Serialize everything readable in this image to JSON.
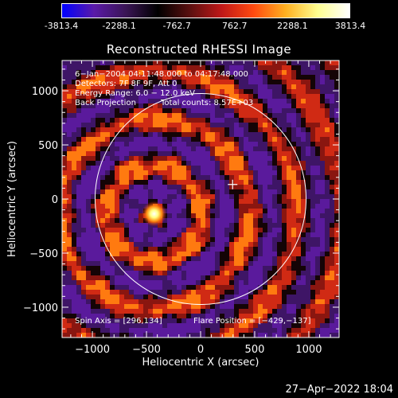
{
  "colorbar": {
    "min": -3813.4,
    "max": 3813.4,
    "tick_labels": [
      "-3813.4",
      "-2288.1",
      "-762.7",
      "762.7",
      "2288.1",
      "3813.4"
    ],
    "colors": [
      "#0000ff",
      "#5a1aa8",
      "#3a1555",
      "#000000",
      "#5a1010",
      "#c01818",
      "#ff4a10",
      "#ffb020",
      "#ffff90",
      "#ffffff"
    ]
  },
  "chart_data": {
    "type": "heatmap",
    "title": "Reconstructed RHESSI Image",
    "xlabel": "Heliocentric X (arcsec)",
    "ylabel": "Heliocentric Y (arcsec)",
    "xlim": [
      -1280,
      1280
    ],
    "ylim": [
      -1280,
      1280
    ],
    "xticks": [
      -1000,
      -500,
      0,
      500,
      1000
    ],
    "yticks": [
      -1000,
      -500,
      0,
      500,
      1000
    ],
    "xtick_labels": [
      "−1000",
      "−500",
      "0",
      "500",
      "1000"
    ],
    "ytick_labels": [
      "−1000",
      "−500",
      "0",
      "500",
      "1000"
    ],
    "solar_limb_radius_arcsec": 975,
    "source": {
      "x": -429,
      "y": -137,
      "peak": 3813.4
    },
    "spin_axis_marker": {
      "x": 296,
      "y": 134
    }
  },
  "annotations": {
    "time_range": "6−Jan−2004 04:11:48.000 to 04:17:48.000",
    "detectors": "Detectors: 7F 8F 9F, Att 0",
    "energy": "Energy Range: 6.0 − 12.0 keV",
    "method": "Back Projection",
    "counts": "Total counts: 8.57E+03",
    "spin_axis": "Spin Axis = [296,134]",
    "flare_position": "Flare Position = [−429,−137]"
  },
  "timestamp": "27−Apr−2022 18:04"
}
